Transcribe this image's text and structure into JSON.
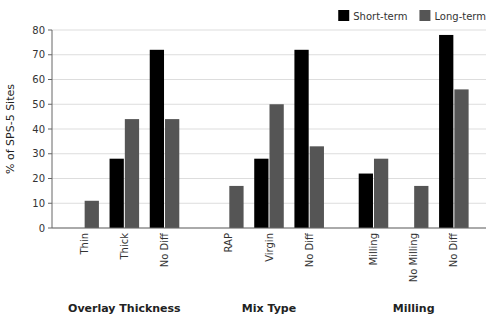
{
  "chart_data": {
    "type": "bar",
    "title": "",
    "ylabel": "% of SPS-5 Sites",
    "categories": [
      "Thin",
      "Thick",
      "No Diff",
      "RAP",
      "Virgin",
      "No Diff",
      "Milling",
      "No Milling",
      "No Diff"
    ],
    "annotations": [
      "Overlay Thickness",
      "Mix Type",
      "Milling"
    ],
    "series": [
      {
        "name": "Short-term",
        "color": "#000000",
        "values": [
          0,
          28,
          72,
          0,
          28,
          72,
          22,
          0,
          78
        ]
      },
      {
        "name": "Long-term",
        "color": "#555555",
        "values": [
          11,
          44,
          44,
          17,
          50,
          33,
          28,
          17,
          56
        ]
      }
    ],
    "ylim": [
      0,
      80
    ],
    "yticks": [
      0,
      10,
      20,
      30,
      40,
      50,
      60,
      70,
      80
    ],
    "grid": true,
    "legend": "upper right"
  }
}
